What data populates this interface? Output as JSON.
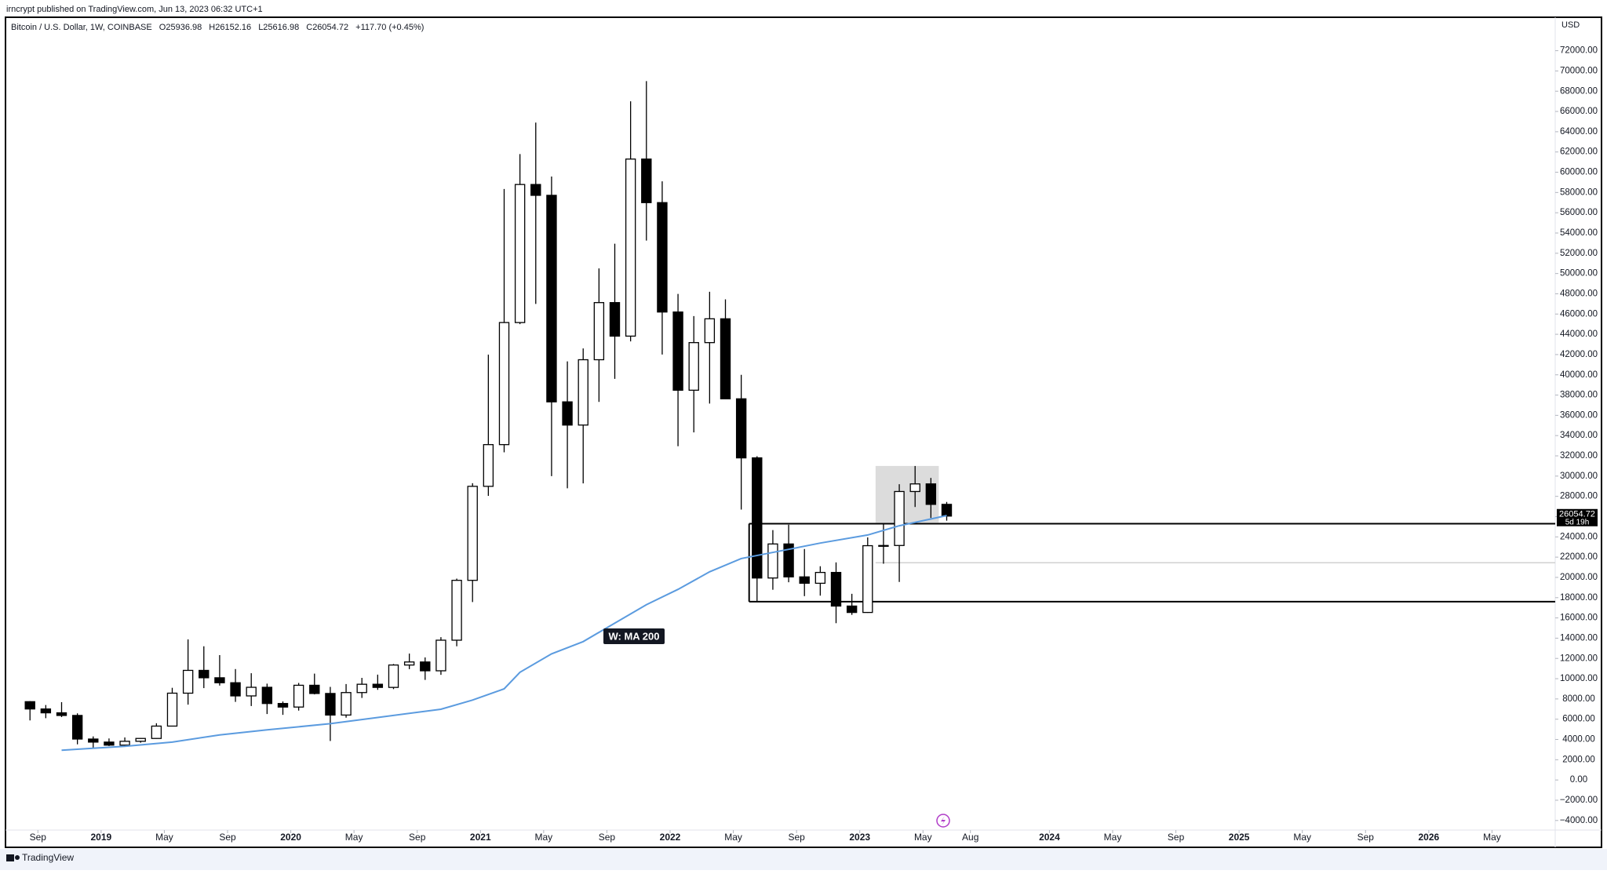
{
  "chart_data": {
    "type": "candlestick",
    "publisher": "irncrypt published on TradingView.com, Jun 13, 2023 06:32 UTC+1",
    "title": "Bitcoin / U.S. Dollar, 1W, COINBASE",
    "ohlc_legend": [
      "O25936.98",
      "H26152.16",
      "L25616.98",
      "C26054.72",
      "+117.70 (+0.45%)"
    ],
    "currency": "USD",
    "brand": "TradingView",
    "up_color": "#ffffff",
    "down_color": "#000000",
    "outline_color": "#000000",
    "dates": [
      "2018-08",
      "2018-09",
      "2018-10",
      "2018-11",
      "2018-12",
      "2019-01",
      "2019-02",
      "2019-03",
      "2019-04",
      "2019-05",
      "2019-06",
      "2019-07",
      "2019-08",
      "2019-09",
      "2019-10",
      "2019-11",
      "2019-12",
      "2020-01",
      "2020-02",
      "2020-03",
      "2020-04",
      "2020-05",
      "2020-06",
      "2020-07",
      "2020-08",
      "2020-09",
      "2020-10",
      "2020-11",
      "2020-12",
      "2021-01",
      "2021-02",
      "2021-03",
      "2021-04",
      "2021-05",
      "2021-06",
      "2021-07",
      "2021-08",
      "2021-09",
      "2021-10",
      "2021-11",
      "2021-12",
      "2022-01",
      "2022-02",
      "2022-03",
      "2022-04",
      "2022-05",
      "2022-06",
      "2022-07",
      "2022-08",
      "2022-09",
      "2022-10",
      "2022-11",
      "2022-12",
      "2023-01",
      "2023-02",
      "2023-03",
      "2023-04",
      "2023-05",
      "2023-06"
    ],
    "open": [
      7730,
      7010,
      6630,
      6370,
      4040,
      3740,
      3440,
      3820,
      4100,
      5320,
      8570,
      10820,
      10090,
      9600,
      8300,
      9150,
      7550,
      7200,
      9350,
      8540,
      6410,
      8630,
      9450,
      9140,
      11350,
      11650,
      10780,
      13800,
      19710,
      28990,
      33110,
      45160,
      58790,
      57720,
      37330,
      35040,
      41490,
      47130,
      43820,
      61300,
      57000,
      46200,
      38480,
      43180,
      45530,
      37630,
      31800,
      19940,
      23300,
      20050,
      19420,
      20490,
      17170,
      16540,
      23130,
      23150,
      28480,
      29230,
      27210
    ],
    "high": [
      7780,
      7400,
      7680,
      6580,
      4300,
      4100,
      4200,
      4130,
      5600,
      9100,
      13880,
      13200,
      12330,
      10950,
      10540,
      9510,
      7750,
      9580,
      10500,
      9190,
      9470,
      10080,
      10400,
      11450,
      12480,
      12100,
      14100,
      19880,
      29300,
      41990,
      58350,
      61790,
      64900,
      59580,
      41330,
      42600,
      50500,
      52940,
      67000,
      69000,
      59100,
      47990,
      45800,
      48200,
      47450,
      40000,
      31960,
      24670,
      25200,
      22800,
      21100,
      21480,
      18380,
      23950,
      25250,
      29200,
      31000,
      29820,
      27450
    ],
    "low": [
      5880,
      6100,
      6210,
      3520,
      3120,
      3350,
      3390,
      3680,
      4070,
      5290,
      7440,
      9070,
      9320,
      7710,
      7300,
      6510,
      6430,
      6850,
      8450,
      3850,
      6150,
      8100,
      8900,
      8970,
      10940,
      9880,
      10380,
      13200,
      17570,
      28050,
      32350,
      45000,
      47000,
      30000,
      28800,
      29280,
      37330,
      39600,
      43300,
      53250,
      42000,
      32950,
      34320,
      37160,
      37600,
      26700,
      17600,
      18780,
      19520,
      18150,
      18200,
      15480,
      16300,
      16500,
      21350,
      19550,
      26950,
      25870,
      25600
    ],
    "close": [
      7010,
      6630,
      6370,
      4040,
      3740,
      3440,
      3820,
      4100,
      5320,
      8570,
      10820,
      10090,
      9600,
      8300,
      9150,
      7550,
      7200,
      9350,
      8540,
      6410,
      8630,
      9450,
      9140,
      11350,
      11650,
      10780,
      13800,
      19710,
      28990,
      33110,
      45160,
      58790,
      57720,
      37330,
      35040,
      41490,
      47130,
      43820,
      61300,
      57000,
      46200,
      38480,
      43180,
      45530,
      37630,
      31800,
      19940,
      23300,
      20050,
      19420,
      20490,
      17170,
      16540,
      23130,
      23150,
      28480,
      29230,
      27210,
      26054.72
    ],
    "ma": {
      "name": "W: MA 200",
      "color": "#5b9bdf",
      "x": [
        "2018-10",
        "2019-02",
        "2019-05",
        "2019-08",
        "2019-11",
        "2020-03",
        "2020-06",
        "2020-10",
        "2020-12",
        "2021-02",
        "2021-03",
        "2021-05",
        "2021-07",
        "2021-09",
        "2021-11",
        "2022-01",
        "2022-03",
        "2022-05",
        "2022-08",
        "2022-10",
        "2023-01",
        "2023-03",
        "2023-06"
      ],
      "values": [
        2930,
        3330,
        3740,
        4450,
        4950,
        5560,
        6170,
        6980,
        7890,
        9000,
        10630,
        12450,
        13660,
        15490,
        17310,
        18820,
        20550,
        21860,
        22770,
        23390,
        24190,
        25100,
        26110
      ]
    },
    "levels": [
      {
        "from": "2022-06",
        "value": 25300,
        "color": "#000000"
      },
      {
        "from": "2022-06",
        "value": 17600,
        "color": "#000000"
      },
      {
        "from": "2023-02",
        "value": 21450,
        "color": "#c8c8c8"
      }
    ],
    "zone": {
      "from": "2023-02",
      "to": "2023-06",
      "low": 25400,
      "high": 31000,
      "color": "#d6d6d6"
    },
    "last_price": 26054.72,
    "countdown": "5d 19h",
    "xlim": [
      "2018-07",
      "2026-09"
    ],
    "ylim": [
      -5100,
      75300
    ],
    "xticks": [
      {
        "value": "2018-09",
        "label": "Sep"
      },
      {
        "value": "2019-01",
        "label": "2019"
      },
      {
        "value": "2019-05",
        "label": "May"
      },
      {
        "value": "2019-09",
        "label": "Sep"
      },
      {
        "value": "2020-01",
        "label": "2020"
      },
      {
        "value": "2020-05",
        "label": "May"
      },
      {
        "value": "2020-09",
        "label": "Sep"
      },
      {
        "value": "2021-01",
        "label": "2021"
      },
      {
        "value": "2021-05",
        "label": "May"
      },
      {
        "value": "2021-09",
        "label": "Sep"
      },
      {
        "value": "2022-01",
        "label": "2022"
      },
      {
        "value": "2022-05",
        "label": "May"
      },
      {
        "value": "2022-09",
        "label": "Sep"
      },
      {
        "value": "2023-01",
        "label": "2023"
      },
      {
        "value": "2023-05",
        "label": "May"
      },
      {
        "value": "2023-08",
        "label": "Aug"
      },
      {
        "value": "2024-01",
        "label": "2024"
      },
      {
        "value": "2024-05",
        "label": "May"
      },
      {
        "value": "2024-09",
        "label": "Sep"
      },
      {
        "value": "2025-01",
        "label": "2025"
      },
      {
        "value": "2025-05",
        "label": "May"
      },
      {
        "value": "2025-09",
        "label": "Sep"
      },
      {
        "value": "2026-01",
        "label": "2026"
      },
      {
        "value": "2026-05",
        "label": "May"
      }
    ],
    "yticks": [
      {
        "value": 72000,
        "label": "72000.00"
      },
      {
        "value": 70000,
        "label": "70000.00"
      },
      {
        "value": 68000,
        "label": "68000.00"
      },
      {
        "value": 66000,
        "label": "66000.00"
      },
      {
        "value": 64000,
        "label": "64000.00"
      },
      {
        "value": 62000,
        "label": "62000.00"
      },
      {
        "value": 60000,
        "label": "60000.00"
      },
      {
        "value": 58000,
        "label": "58000.00"
      },
      {
        "value": 56000,
        "label": "56000.00"
      },
      {
        "value": 54000,
        "label": "54000.00"
      },
      {
        "value": 52000,
        "label": "52000.00"
      },
      {
        "value": 50000,
        "label": "50000.00"
      },
      {
        "value": 48000,
        "label": "48000.00"
      },
      {
        "value": 46000,
        "label": "46000.00"
      },
      {
        "value": 44000,
        "label": "44000.00"
      },
      {
        "value": 42000,
        "label": "42000.00"
      },
      {
        "value": 40000,
        "label": "40000.00"
      },
      {
        "value": 38000,
        "label": "38000.00"
      },
      {
        "value": 36000,
        "label": "36000.00"
      },
      {
        "value": 34000,
        "label": "34000.00"
      },
      {
        "value": 32000,
        "label": "32000.00"
      },
      {
        "value": 30000,
        "label": "30000.00"
      },
      {
        "value": 28000,
        "label": "28000.00"
      },
      {
        "value": 26000,
        "label": "26000.00"
      },
      {
        "value": 24000,
        "label": "24000.00"
      },
      {
        "value": 22000,
        "label": "22000.00"
      },
      {
        "value": 20000,
        "label": "20000.00"
      },
      {
        "value": 18000,
        "label": "18000.00"
      },
      {
        "value": 16000,
        "label": "16000.00"
      },
      {
        "value": 14000,
        "label": "14000.00"
      },
      {
        "value": 12000,
        "label": "12000.00"
      },
      {
        "value": 10000,
        "label": "10000.00"
      },
      {
        "value": 8000,
        "label": "8000.00"
      },
      {
        "value": 6000,
        "label": "6000.00"
      },
      {
        "value": 4000,
        "label": "4000.00"
      },
      {
        "value": 2000,
        "label": "2000.00"
      },
      {
        "value": 0,
        "label": "0.00"
      },
      {
        "value": -2000,
        "label": "−2000.00"
      },
      {
        "value": -4000,
        "label": "−4000.00"
      }
    ],
    "grid": false
  }
}
